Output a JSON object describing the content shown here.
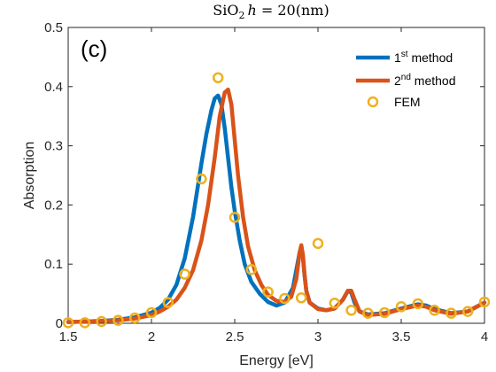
{
  "chart_data": {
    "type": "line",
    "title": {
      "prefix": "SiO",
      "sub": "2",
      "italic_var": "h",
      "suffix": " = 20(nm)"
    },
    "panel_label": "(c)",
    "xlabel": "Energy [eV]",
    "ylabel": "Absorption",
    "xlim": [
      1.5,
      4.0
    ],
    "ylim": [
      0,
      0.5
    ],
    "xticks": [
      "1.5",
      "2",
      "2.5",
      "3",
      "3.5",
      "4"
    ],
    "yticks": [
      "0",
      "0.1",
      "0.2",
      "0.3",
      "0.4",
      "0.5"
    ],
    "grid": false,
    "legend_position": "top-right",
    "series": [
      {
        "name": "1st method",
        "name_base": "1",
        "name_sup": "st",
        "name_rest": " method",
        "style": "line",
        "color": "#0072BD",
        "x": [
          1.5,
          1.6,
          1.7,
          1.8,
          1.9,
          2.0,
          2.05,
          2.1,
          2.15,
          2.2,
          2.25,
          2.3,
          2.33,
          2.36,
          2.38,
          2.4,
          2.42,
          2.44,
          2.46,
          2.48,
          2.5,
          2.53,
          2.56,
          2.6,
          2.65,
          2.7,
          2.75,
          2.8,
          2.85,
          2.87,
          2.89,
          2.9,
          2.91,
          2.92,
          2.93,
          2.95,
          3.0,
          3.05,
          3.1,
          3.15,
          3.18,
          3.2,
          3.22,
          3.25,
          3.3,
          3.4,
          3.5,
          3.6,
          3.65,
          3.7,
          3.8,
          3.9,
          4.0
        ],
        "y": [
          0.002,
          0.003,
          0.004,
          0.006,
          0.01,
          0.018,
          0.026,
          0.04,
          0.065,
          0.11,
          0.18,
          0.27,
          0.32,
          0.36,
          0.38,
          0.385,
          0.37,
          0.33,
          0.28,
          0.23,
          0.19,
          0.14,
          0.1,
          0.07,
          0.05,
          0.036,
          0.03,
          0.035,
          0.06,
          0.09,
          0.12,
          0.128,
          0.11,
          0.08,
          0.055,
          0.035,
          0.025,
          0.022,
          0.025,
          0.04,
          0.055,
          0.052,
          0.035,
          0.02,
          0.015,
          0.017,
          0.025,
          0.032,
          0.03,
          0.024,
          0.017,
          0.02,
          0.035
        ]
      },
      {
        "name": "2nd method",
        "name_base": "2",
        "name_sup": "nd",
        "name_rest": " method",
        "style": "line",
        "color": "#D95319",
        "x": [
          1.5,
          1.6,
          1.7,
          1.8,
          1.9,
          2.0,
          2.05,
          2.1,
          2.15,
          2.2,
          2.25,
          2.3,
          2.34,
          2.38,
          2.41,
          2.44,
          2.46,
          2.48,
          2.5,
          2.52,
          2.55,
          2.58,
          2.62,
          2.66,
          2.7,
          2.75,
          2.8,
          2.84,
          2.87,
          2.89,
          2.9,
          2.91,
          2.92,
          2.93,
          2.95,
          3.0,
          3.05,
          3.1,
          3.15,
          3.18,
          3.2,
          3.22,
          3.25,
          3.3,
          3.4,
          3.5,
          3.6,
          3.65,
          3.7,
          3.8,
          3.9,
          4.0
        ],
        "y": [
          0.002,
          0.003,
          0.004,
          0.005,
          0.008,
          0.014,
          0.02,
          0.028,
          0.04,
          0.06,
          0.09,
          0.14,
          0.2,
          0.28,
          0.35,
          0.39,
          0.395,
          0.37,
          0.31,
          0.25,
          0.18,
          0.13,
          0.09,
          0.065,
          0.048,
          0.038,
          0.036,
          0.045,
          0.075,
          0.12,
          0.132,
          0.115,
          0.08,
          0.055,
          0.035,
          0.024,
          0.022,
          0.025,
          0.04,
          0.055,
          0.055,
          0.04,
          0.02,
          0.014,
          0.016,
          0.024,
          0.03,
          0.028,
          0.022,
          0.016,
          0.02,
          0.035
        ]
      },
      {
        "name": "FEM",
        "name_base": "FEM",
        "name_sup": "",
        "name_rest": "",
        "style": "marker",
        "color": "#EDB120",
        "x": [
          1.5,
          1.6,
          1.7,
          1.8,
          1.9,
          2.0,
          2.1,
          2.2,
          2.3,
          2.4,
          2.5,
          2.6,
          2.7,
          2.8,
          2.9,
          3.0,
          3.1,
          3.2,
          3.3,
          3.4,
          3.5,
          3.6,
          3.7,
          3.8,
          3.9,
          4.0
        ],
        "y": [
          0.001,
          0.001,
          0.003,
          0.005,
          0.009,
          0.018,
          0.035,
          0.083,
          0.244,
          0.415,
          0.179,
          0.091,
          0.053,
          0.042,
          0.043,
          0.135,
          0.034,
          0.022,
          0.017,
          0.018,
          0.028,
          0.033,
          0.022,
          0.017,
          0.02,
          0.036
        ]
      }
    ]
  }
}
